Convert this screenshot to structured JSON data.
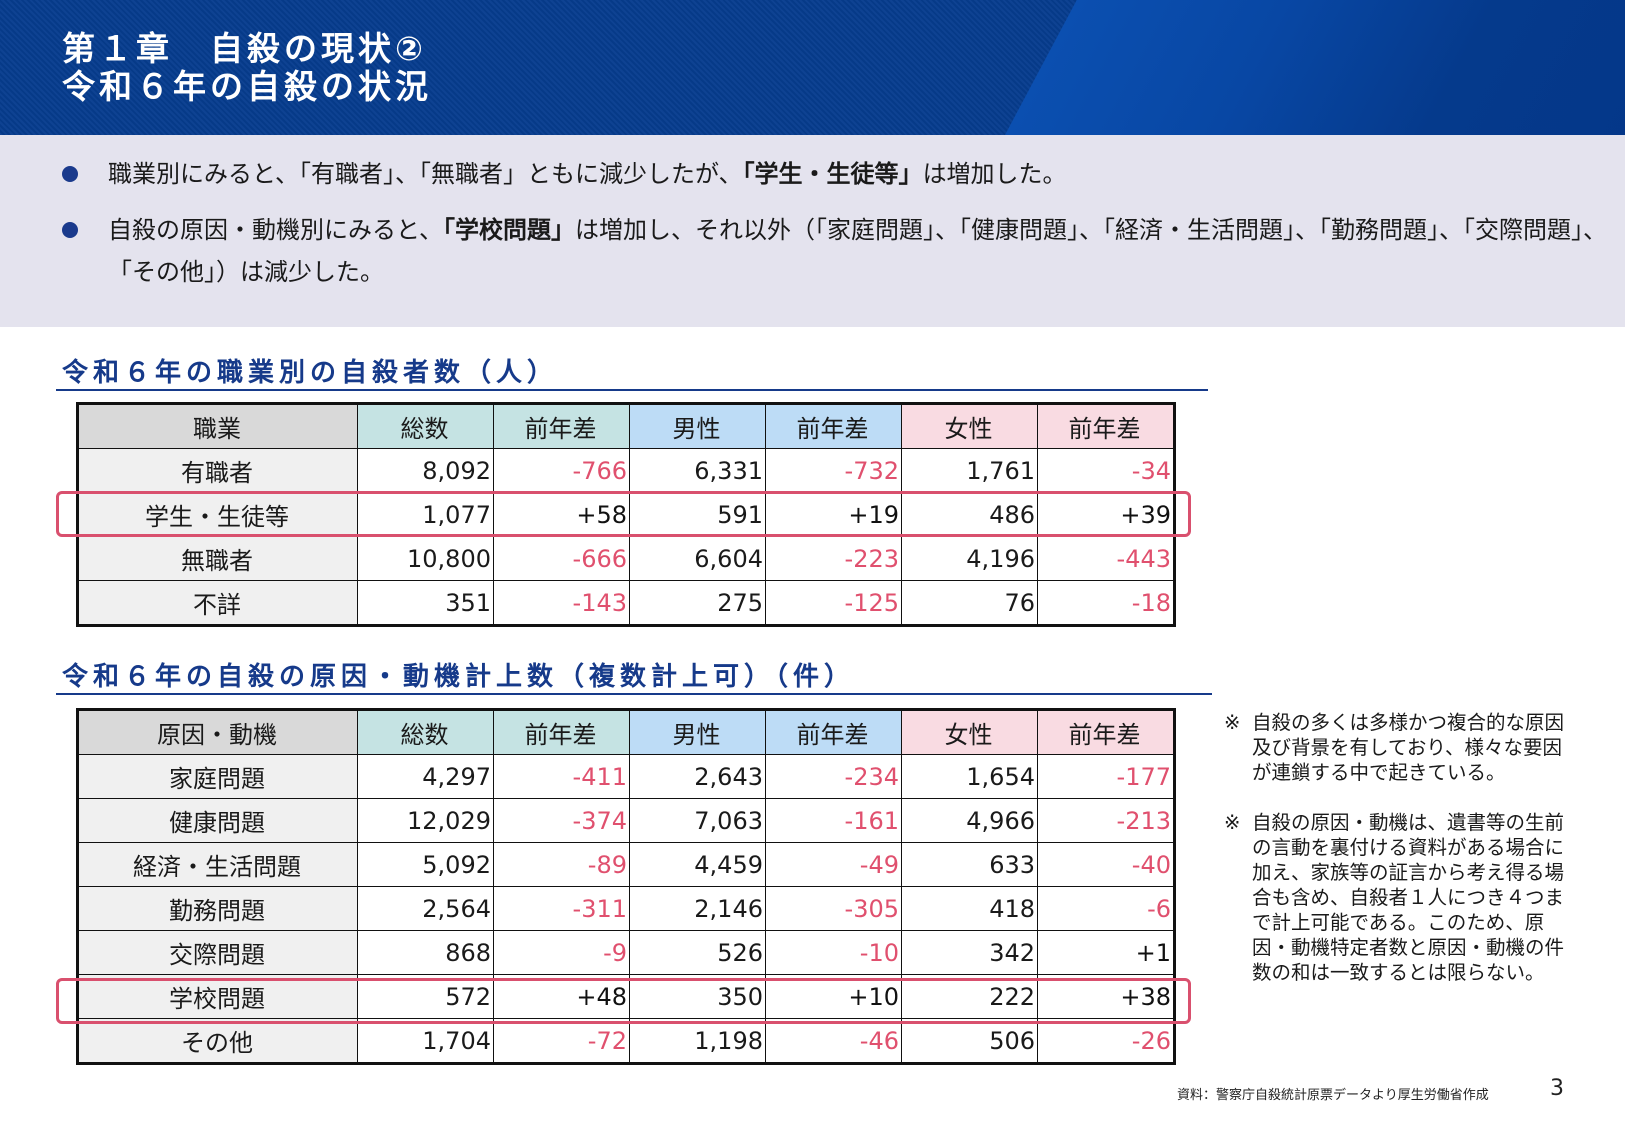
{
  "header": {
    "line1": "第１章　自殺の現状②",
    "line2": "令和６年の自殺の状況"
  },
  "summary": {
    "bullets": [
      {
        "pre": "職業別にみると、「有職者」、「無職者」ともに減少したが、",
        "bold": "「学生・生徒等」",
        "post": "は増加した。"
      },
      {
        "pre": "自殺の原因・動機別にみると、",
        "bold": "「学校問題」",
        "post": "は増加し、それ以外（「家庭問題」、「健康問題」、「経済・生活問題」、「勤務問題」、「交際問題」、「その他」）は減少した。"
      }
    ]
  },
  "table1": {
    "title": "令和６年の職業別の自殺者数（人）",
    "headers": [
      "職業",
      "総数",
      "前年差",
      "男性",
      "前年差",
      "女性",
      "前年差"
    ],
    "rows": [
      [
        "有職者",
        "8,092",
        "-766",
        "6,331",
        "-732",
        "1,761",
        "-34"
      ],
      [
        "学生・生徒等",
        "1,077",
        "+58",
        "591",
        "+19",
        "486",
        "+39"
      ],
      [
        "無職者",
        "10,800",
        "-666",
        "6,604",
        "-223",
        "4,196",
        "-443"
      ],
      [
        "不詳",
        "351",
        "-143",
        "275",
        "-125",
        "76",
        "-18"
      ]
    ],
    "highlighted_row": "学生・生徒等"
  },
  "table2": {
    "title": "令和６年の自殺の原因・動機計上数（複数計上可）（件）",
    "headers": [
      "原因・動機",
      "総数",
      "前年差",
      "男性",
      "前年差",
      "女性",
      "前年差"
    ],
    "rows": [
      [
        "家庭問題",
        "4,297",
        "-411",
        "2,643",
        "-234",
        "1,654",
        "-177"
      ],
      [
        "健康問題",
        "12,029",
        "-374",
        "7,063",
        "-161",
        "4,966",
        "-213"
      ],
      [
        "経済・生活問題",
        "5,092",
        "-89",
        "4,459",
        "-49",
        "633",
        "-40"
      ],
      [
        "勤務問題",
        "2,564",
        "-311",
        "2,146",
        "-305",
        "418",
        "-6"
      ],
      [
        "交際問題",
        "868",
        "-9",
        "526",
        "-10",
        "342",
        "+1"
      ],
      [
        "学校問題",
        "572",
        "+48",
        "350",
        "+10",
        "222",
        "+38"
      ],
      [
        "その他",
        "1,704",
        "-72",
        "1,198",
        "-46",
        "506",
        "-26"
      ]
    ],
    "highlighted_row": "学校問題"
  },
  "notes": [
    {
      "mark": "※",
      "text": "自殺の多くは多様かつ複合的な原因及び背景を有しており、様々な要因が連鎖する中で起きている。"
    },
    {
      "mark": "※",
      "text": "自殺の原因・動機は、遺書等の生前の言動を裏付ける資料がある場合に加え、家族等の証言から考え得る場合も含め、自殺者１人につき４つまで計上可能である。このため、原因・動機特定者数と原因・動機の件数の和は一致するとは限らない。"
    }
  ],
  "footer": {
    "source": "資料：警察庁自殺統計原票データより厚生労働省作成",
    "page": "3"
  },
  "colors": {
    "header_bg": "#063c8e",
    "accent_navy": "#163a8a",
    "negative": "#e0506e",
    "highlight_border": "#d9506e",
    "total_header": "#c5e3e3",
    "male_header": "#bddcf6",
    "female_header": "#f9dbe2"
  }
}
